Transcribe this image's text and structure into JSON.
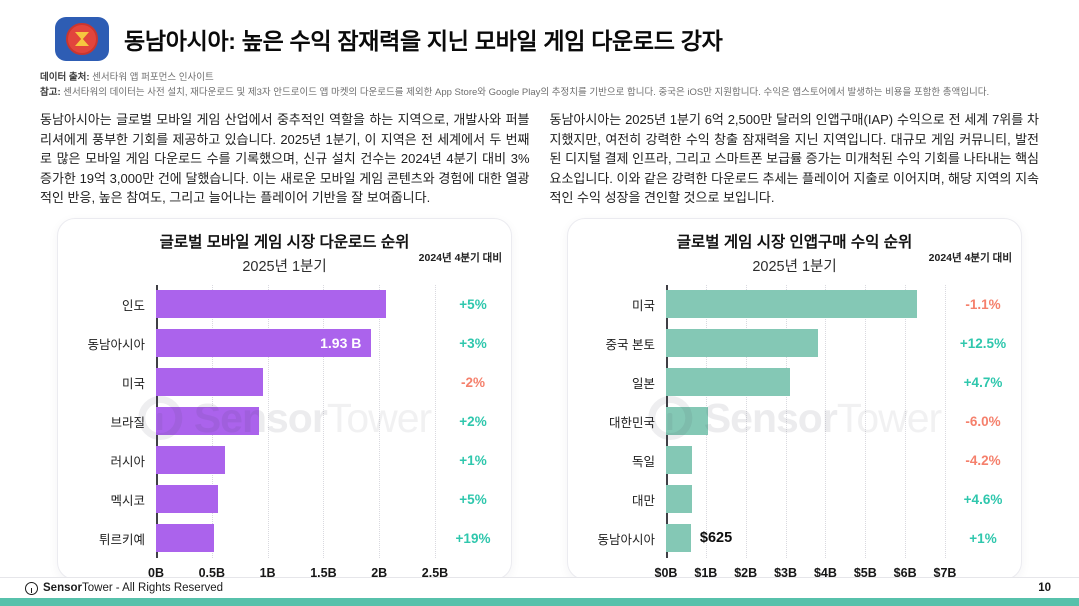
{
  "page": {
    "title": "동남아시아: 높은 수익 잠재력을 지닌 모바일 게임 다운로드 강자",
    "source_label": "데이터 출처:",
    "source_text": " 센서타워 앱 퍼포먼스 인사이트",
    "note_label": "참고:",
    "note_text": " 센서타워의 데이터는 사전 설치, 재다운로드 및 제3자 안드로이드 앱 마켓의 다운로드를 제외한 App Store와 Google Play의 추정치를 기반으로 합니다. 중국은 iOS만 지원합니다. 수익은 앱스토어에서 발생하는 비용을 포함한 총액입니다.",
    "paragraph_left": "동남아시아는 글로벌 모바일 게임 산업에서 중추적인 역할을 하는 지역으로, 개발사와 퍼블리셔에게 풍부한 기회를 제공하고 있습니다. 2025년 1분기, 이 지역은 전 세계에서 두 번째로 많은 모바일 게임 다운로드 수를 기록했으며, 신규 설치 건수는 2024년 4분기 대비 3% 증가한 19억 3,000만 건에 달했습니다. 이는 새로운 모바일 게임 콘텐츠와 경험에 대한 열광적인 반응, 높은 참여도, 그리고 늘어나는 플레이어 기반을 잘 보여줍니다.",
    "paragraph_right": "동남아시아는 2025년 1분기 6억 2,500만 달러의 인앱구매(IAP) 수익으로 전 세계 7위를 차지했지만, 여전히 강력한 수익 창출 잠재력을 지닌 지역입니다. 대규모 게임 커뮤니티, 발전된 디지털 결제 인프라, 그리고 스마트폰 보급률 증가는 미개척된 수익 기회를 나타내는 핵심 요소입니다. 이와 같은 강력한 다운로드 추세는 플레이어 지출로 이어지며, 해당 지역의 지속적인 수익 성장을 견인할 것으로 보입니다.",
    "footer": {
      "brand_bold": "Sensor",
      "brand_light": "Tower",
      "rights": "- All Rights Reserved",
      "page_number": "10"
    },
    "watermark": {
      "brand_bold": "Sensor",
      "brand_light": "Tower"
    }
  },
  "colors": {
    "download_bar": "#ab63ec",
    "revenue_bar": "#84c8b5",
    "positive": "#2fc7ad",
    "negative": "#f5806c",
    "accent_bottom": "#57c1ab"
  },
  "chart_data": [
    {
      "type": "bar",
      "orientation": "horizontal",
      "title": "글로벌 모바일 게임 시장 다운로드 순위",
      "subtitle": "2025년 1분기",
      "comparison_label": "2024년 4분기 대비",
      "categories": [
        "인도",
        "동남아시아",
        "미국",
        "브라질",
        "러시아",
        "멕시코",
        "튀르키예"
      ],
      "values": [
        2.06,
        1.93,
        0.96,
        0.92,
        0.62,
        0.56,
        0.52
      ],
      "unit": "billions of downloads",
      "value_label": {
        "index": 1,
        "text": "1.93 B",
        "placement": "inside"
      },
      "change_labels": [
        "+5%",
        "+3%",
        "-2%",
        "+2%",
        "+1%",
        "+5%",
        "+19%"
      ],
      "x_ticks": [
        "0B",
        "0.5B",
        "1B",
        "1.5B",
        "2B",
        "2.5B"
      ],
      "xlim": [
        0,
        2.5
      ],
      "bar_color": "#ab63ec",
      "grid": "dotted-vertical",
      "legend": "none"
    },
    {
      "type": "bar",
      "orientation": "horizontal",
      "title": "글로벌 게임 시장 인앱구매 수익 순위",
      "subtitle": "2025년 1분기",
      "comparison_label": "2024년 4분기 대비",
      "categories": [
        "미국",
        "중국 본토",
        "일본",
        "대한민국",
        "독일",
        "대만",
        "동남아시아"
      ],
      "values": [
        6.31,
        3.82,
        3.11,
        1.06,
        0.65,
        0.65,
        0.625
      ],
      "unit": "USD billions",
      "value_label": {
        "index": 6,
        "text": "$625",
        "placement": "outside"
      },
      "change_labels": [
        "-1.1%",
        "+12.5%",
        "+4.7%",
        "-6.0%",
        "-4.2%",
        "+4.6%",
        "+1%"
      ],
      "x_ticks": [
        "$0B",
        "$1B",
        "$2B",
        "$3B",
        "$4B",
        "$5B",
        "$6B",
        "$7B"
      ],
      "xlim": [
        0,
        7
      ],
      "bar_color": "#84c8b5",
      "grid": "dotted-vertical",
      "legend": "none"
    }
  ]
}
